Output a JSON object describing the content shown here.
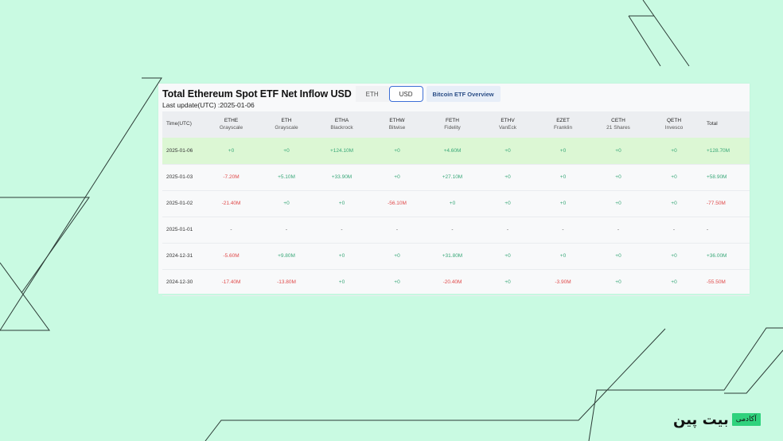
{
  "header": {
    "title": "Total Ethereum Spot ETF Net Inflow USD",
    "unit_options": [
      "ETH",
      "USD"
    ],
    "selected_unit": "USD",
    "overview_button": "Bitcoin ETF Overview",
    "last_update": "Last update(UTC) :2025-01-06"
  },
  "table": {
    "first_header": "Time(UTC)",
    "total_header": "Total",
    "columns": [
      {
        "ticker": "ETHE",
        "issuer": "Grayscale"
      },
      {
        "ticker": "ETH",
        "issuer": "Grayscale"
      },
      {
        "ticker": "ETHA",
        "issuer": "Blackrock"
      },
      {
        "ticker": "ETHW",
        "issuer": "Bitwise"
      },
      {
        "ticker": "FETH",
        "issuer": "Fidelity"
      },
      {
        "ticker": "ETHV",
        "issuer": "VanEck"
      },
      {
        "ticker": "EZET",
        "issuer": "Franklin"
      },
      {
        "ticker": "CETH",
        "issuer": "21 Shares"
      },
      {
        "ticker": "QETH",
        "issuer": "Invesco"
      }
    ],
    "rows": [
      {
        "date": "2025-01-06",
        "highlight": true,
        "cells": [
          "+0",
          "+0",
          "+124.10M",
          "+0",
          "+4.60M",
          "+0",
          "+0",
          "+0",
          "+0"
        ],
        "total": "+128.70M"
      },
      {
        "date": "2025-01-03",
        "highlight": false,
        "cells": [
          "-7.20M",
          "+5.10M",
          "+33.90M",
          "+0",
          "+27.10M",
          "+0",
          "+0",
          "+0",
          "+0"
        ],
        "total": "+58.90M"
      },
      {
        "date": "2025-01-02",
        "highlight": false,
        "cells": [
          "-21.40M",
          "+0",
          "+0",
          "-56.10M",
          "+0",
          "+0",
          "+0",
          "+0",
          "+0"
        ],
        "total": "-77.50M"
      },
      {
        "date": "2025-01-01",
        "highlight": false,
        "cells": [
          "-",
          "-",
          "-",
          "-",
          "-",
          "-",
          "-",
          "-",
          "-"
        ],
        "total": "-"
      },
      {
        "date": "2024-12-31",
        "highlight": false,
        "cells": [
          "-5.60M",
          "+9.80M",
          "+0",
          "+0",
          "+31.80M",
          "+0",
          "+0",
          "+0",
          "+0"
        ],
        "total": "+36.00M"
      },
      {
        "date": "2024-12-30",
        "highlight": false,
        "cells": [
          "-17.40M",
          "-13.80M",
          "+0",
          "+0",
          "-20.40M",
          "+0",
          "-3.90M",
          "+0",
          "+0"
        ],
        "total": "-55.50M"
      }
    ]
  },
  "branding": {
    "wordmark": "بیت پین",
    "tag": "آکادمی"
  },
  "colors": {
    "background": "#c9fae2",
    "positive": "#3aa879",
    "negative": "#e04a4a",
    "highlight_row": "#dcf7d4",
    "accent": "#3d6fd6"
  }
}
